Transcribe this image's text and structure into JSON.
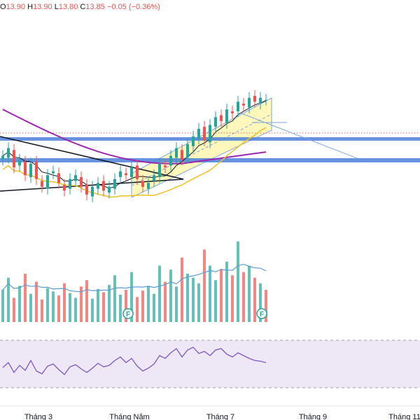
{
  "legend": {
    "open_key": "O",
    "open": "13.90",
    "high_key": "H",
    "high": "13.90",
    "low_key": "L",
    "low": "13.80",
    "close_key": "C",
    "close": "13.85",
    "change": "−0.05 (−0.36%)"
  },
  "colors": {
    "up": "#26a69a",
    "down": "#ef5350",
    "ma_slow": "#9c27b0",
    "ma_mid": "#131722",
    "ma_fast": "#f0c020",
    "channel_fill": "#fff59d",
    "level_band": "#4c7fd9",
    "trendline": "#7aa6e6",
    "volume_ma": "#5b9bd5",
    "rsi_line": "#7e57c2",
    "rsi_band": "#ede7f6",
    "flag": "#26a69a"
  },
  "icons": {
    "flag_marker": "F"
  },
  "chart_data": {
    "type": "candlestick",
    "x_labels": [
      "Tháng 3",
      "Tháng Năm",
      "Tháng 7",
      "Tháng 9",
      "Tháng 11"
    ],
    "price": {
      "candles_close": [
        12.4,
        12.6,
        12.1,
        12.3,
        11.9,
        12.2,
        11.8,
        11.6,
        11.9,
        12.0,
        11.7,
        11.5,
        11.8,
        11.9,
        11.6,
        11.4,
        11.6,
        11.7,
        11.5,
        11.6,
        11.8,
        12.0,
        11.9,
        12.1,
        11.8,
        11.6,
        11.7,
        11.9,
        12.2,
        12.1,
        12.4,
        12.6,
        12.3,
        12.7,
        12.9,
        13.1,
        12.8,
        13.2,
        13.4,
        13.3,
        13.6,
        13.5,
        13.8,
        13.7,
        13.9,
        13.8,
        13.9,
        13.85
      ],
      "level_upper": 13.05,
      "level_lower": 12.45
    },
    "volume": {
      "values": [
        40,
        55,
        30,
        45,
        60,
        35,
        50,
        28,
        42,
        38,
        33,
        48,
        36,
        30,
        44,
        52,
        29,
        41,
        37,
        46,
        58,
        34,
        40,
        62,
        31,
        39,
        45,
        35,
        70,
        50,
        65,
        44,
        80,
        60,
        55,
        48,
        90,
        70,
        52,
        66,
        75,
        58,
        100,
        62,
        70,
        55,
        48,
        40
      ],
      "flags": [
        "F",
        "F"
      ]
    },
    "rsi": {
      "values": [
        45,
        52,
        38,
        48,
        41,
        55,
        40,
        36,
        47,
        50,
        42,
        35,
        46,
        49,
        43,
        38,
        44,
        51,
        46,
        48,
        55,
        60,
        52,
        58,
        47,
        40,
        44,
        50,
        62,
        58,
        66,
        72,
        60,
        70,
        74,
        65,
        68,
        62,
        70,
        72,
        64,
        60,
        66,
        62,
        58,
        55,
        54,
        52
      ],
      "band": [
        30,
        70
      ]
    }
  }
}
